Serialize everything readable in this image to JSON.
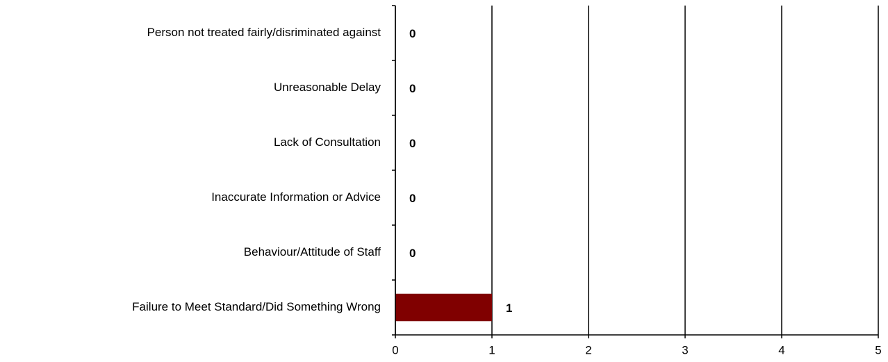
{
  "chart_data": {
    "type": "bar",
    "orientation": "horizontal",
    "categories": [
      "Person not treated fairly/disriminated against",
      "Unreasonable Delay",
      "Lack of Consultation",
      "Inaccurate Information or Advice",
      "Behaviour/Attitude of Staff",
      "Failure to Meet Standard/Did Something Wrong"
    ],
    "values": [
      0,
      0,
      0,
      0,
      0,
      1
    ],
    "color": "#800000",
    "xlim": [
      0,
      5
    ],
    "xticks": [
      0,
      1,
      2,
      3,
      4,
      5
    ],
    "grid": true
  }
}
